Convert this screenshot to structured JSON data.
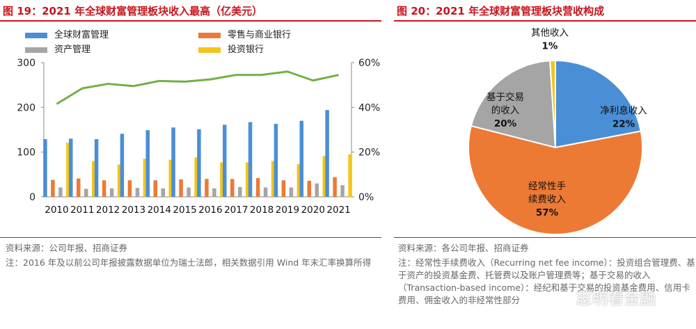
{
  "left": {
    "title": "图 19：2021 年全球财富管理板块收入最高（亿美元）",
    "source": "资料来源：公司年报、招商证券",
    "note": "注：2016 年及以前公司年报披露数据单位为瑞士法郎，相关数据引用 Wind 年末汇率换算所得"
  },
  "right": {
    "title": "图 20：2021 年全球财富管理板块营收构成",
    "source": "资料来源：各公司年报、招商证券",
    "note": "注：经常性手续费收入（Recurring net fee income）：投资组合管理费、基于资产的投资基金费、托管费以及账户管理费等；基于交易的收入（Transaction-based income）：经纪和基于交易的投资基金费用、信用卡费用、佣金收入的非经常性部分"
  },
  "watermark": "志明看金融",
  "chart_data": [
    {
      "type": "bar",
      "categories": [
        "2010",
        "2011",
        "2012",
        "2013",
        "2014",
        "2015",
        "2016",
        "2017",
        "2018",
        "2019",
        "2020",
        "2021"
      ],
      "series": [
        {
          "name": "全球财富管理",
          "color": "#4a8fd6",
          "values": [
            129,
            130,
            129,
            141,
            149,
            155,
            151,
            161,
            167,
            163,
            170,
            194
          ]
        },
        {
          "name": "零售与商业银行",
          "color": "#ec7a35",
          "values": [
            38,
            41,
            37,
            37,
            37,
            39,
            40,
            40,
            42,
            37,
            36,
            44
          ]
        },
        {
          "name": "资产管理",
          "color": "#a5a5a5",
          "values": [
            21,
            18,
            19,
            20,
            19,
            21,
            19,
            22,
            21,
            21,
            30,
            26
          ]
        },
        {
          "name": "投资银行",
          "color": "#f5c518",
          "values": [
            121,
            80,
            72,
            85,
            83,
            88,
            77,
            77,
            80,
            73,
            91,
            95
          ]
        }
      ],
      "line_series": {
        "values": [
          41.5,
          48.5,
          50.5,
          49.5,
          51.8,
          51.5,
          52.5,
          54.5,
          54.5,
          56.0,
          52.0,
          54.5
        ],
        "color": "#72b045"
      },
      "y_ticks": [
        "0",
        "100",
        "200",
        "300"
      ],
      "y2_ticks": [
        "0%",
        "20%",
        "40%",
        "60%"
      ],
      "ylim": [
        0,
        300
      ],
      "y2lim": [
        0,
        60
      ]
    },
    {
      "type": "pie",
      "slices": [
        {
          "label_lines": [
            "净利息收入"
          ],
          "pct": "22%",
          "value": 22,
          "color": "#4a8fd6"
        },
        {
          "label_lines": [
            "经常性手",
            "续费收入"
          ],
          "pct": "57%",
          "value": 57,
          "color": "#ec7a35"
        },
        {
          "label_lines": [
            "基于交易",
            "的收入"
          ],
          "pct": "20%",
          "value": 20,
          "color": "#a5a5a5"
        },
        {
          "label_lines": [
            "其他收入"
          ],
          "pct": "1%",
          "value": 1,
          "color": "#f5c518"
        }
      ]
    }
  ]
}
